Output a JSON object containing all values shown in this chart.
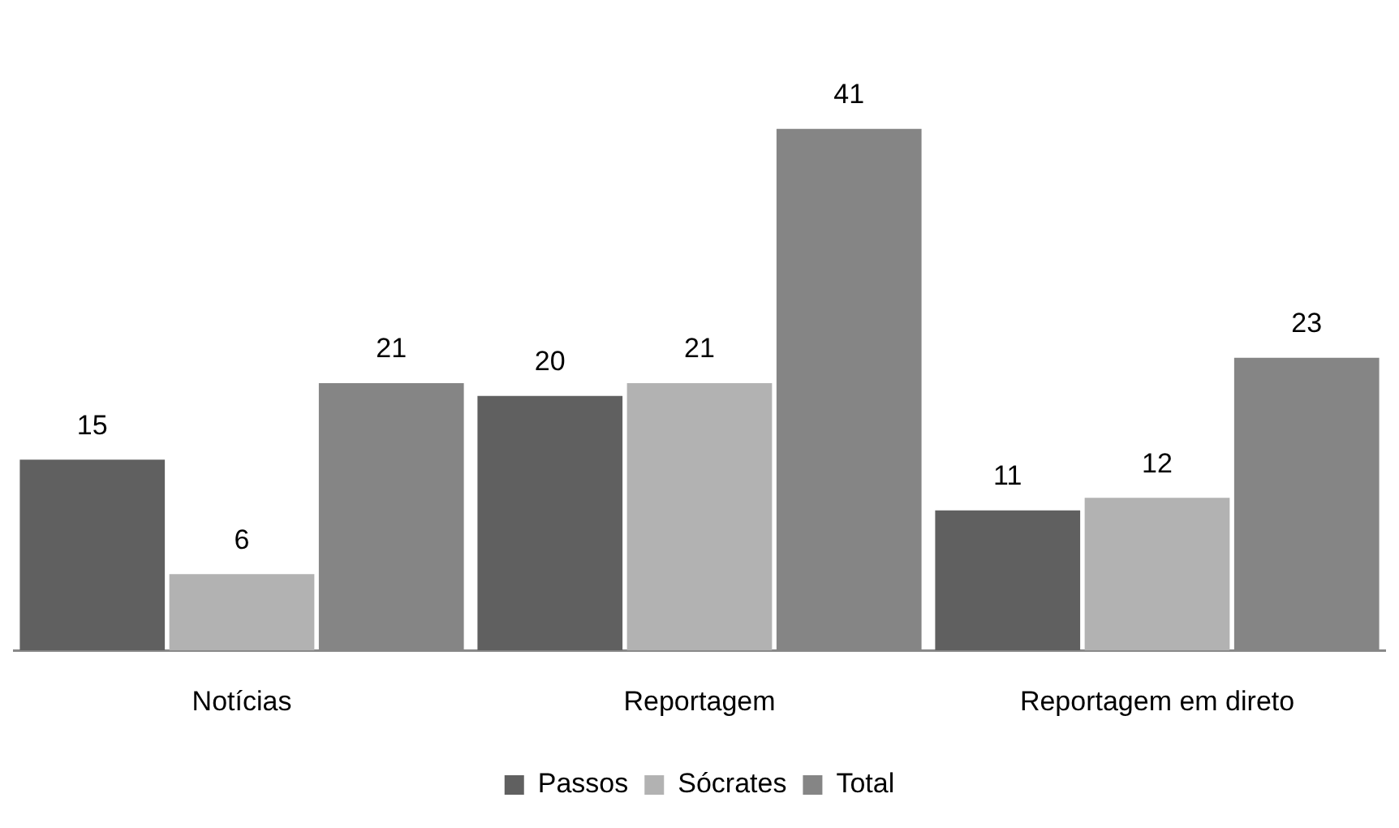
{
  "chart_data": {
    "type": "bar",
    "categories": [
      "Notícias",
      "Reportagem",
      "Reportagem em direto"
    ],
    "series": [
      {
        "name": "Passos",
        "color": "#606060",
        "values": [
          15,
          20,
          11
        ]
      },
      {
        "name": "Sócrates",
        "color": "#b2b2b2",
        "values": [
          6,
          21,
          12
        ]
      },
      {
        "name": "Total",
        "color": "#858585",
        "values": [
          21,
          41,
          23
        ]
      }
    ],
    "data_labels": true,
    "legend": "bottom",
    "grid": false
  }
}
